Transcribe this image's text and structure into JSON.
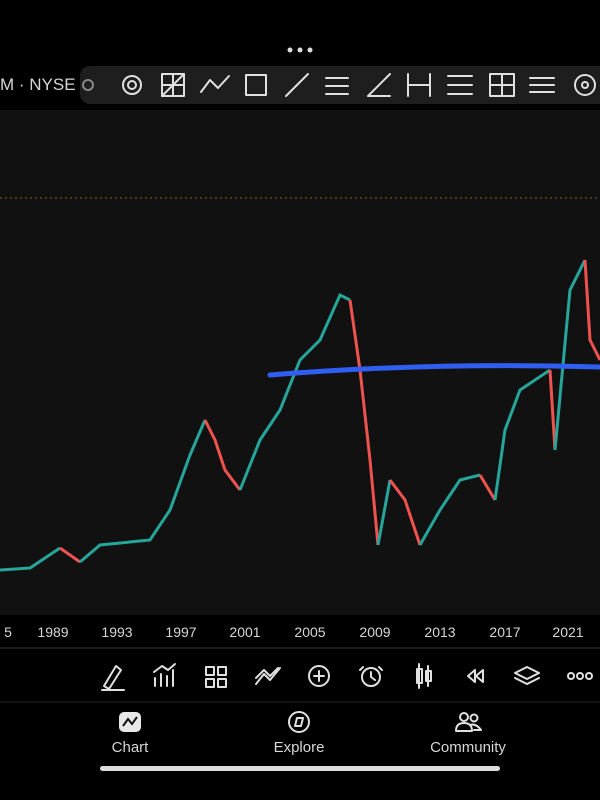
{
  "toolbar": {
    "symbol": "M · NYSE"
  },
  "chart": {
    "x_labels": [
      "5",
      "1989",
      "1993",
      "1997",
      "2001",
      "2005",
      "2009",
      "2013",
      "2017",
      "2021"
    ]
  },
  "bottom_nav": [
    {
      "label": "Chart"
    },
    {
      "label": "Explore"
    },
    {
      "label": "Community"
    }
  ]
}
